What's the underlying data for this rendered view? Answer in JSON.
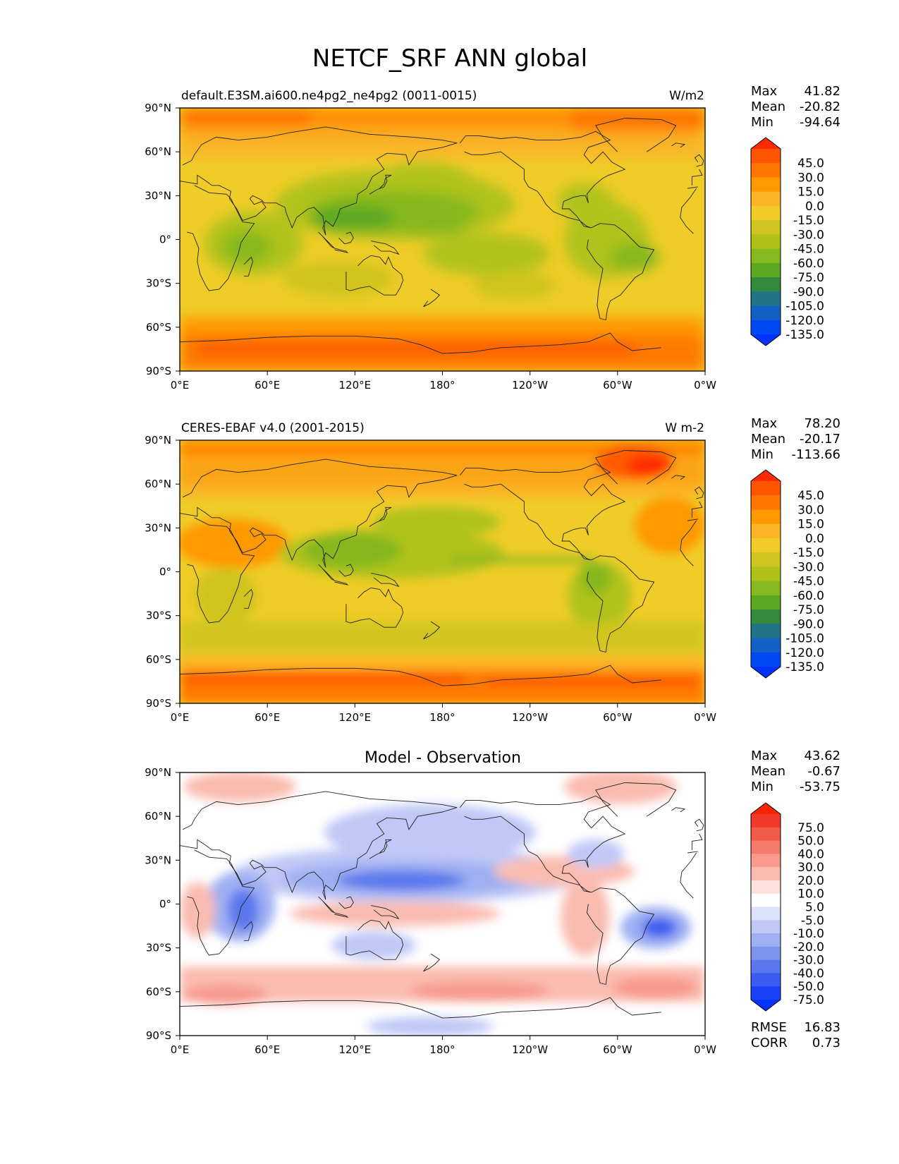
{
  "figure_title": "NETCF_SRF ANN global",
  "chart_data": [
    {
      "type": "heatmap",
      "name": "test",
      "title": "default.E3SM.ai600.ne4pg2_ne4pg2 (0011-0015)",
      "units": "W/m2",
      "stats": [
        {
          "label": "Max",
          "value": "41.82"
        },
        {
          "label": "Mean",
          "value": "-20.82"
        },
        {
          "label": "Min",
          "value": "-94.64"
        }
      ],
      "colorbar": {
        "labels": [
          "45.0",
          "30.0",
          "15.0",
          "0.0",
          "-15.0",
          "-30.0",
          "-45.0",
          "-60.0",
          "-75.0",
          "-90.0",
          "-105.0",
          "-120.0",
          "-135.0"
        ],
        "colors": [
          "#ff2a00",
          "#ff5500",
          "#ff7700",
          "#ff9900",
          "#fbb327",
          "#efcc27",
          "#cfc41f",
          "#b0c21a",
          "#86b81f",
          "#5aa820",
          "#338a3a",
          "#1f7488",
          "#1460c4",
          "#0049f2",
          "#0033ff"
        ]
      },
      "xlim": [
        0,
        360
      ],
      "ylim": [
        -90,
        90
      ],
      "xticks": [
        "0°E",
        "60°E",
        "120°E",
        "180°",
        "120°W",
        "60°W",
        "0°W"
      ],
      "yticks": [
        "90°N",
        "60°N",
        "30°N",
        "0°",
        "30°S",
        "60°S",
        "90°S"
      ]
    },
    {
      "type": "heatmap",
      "name": "reference",
      "title": "CERES-EBAF v4.0 (2001-2015)",
      "units": "W m-2",
      "stats": [
        {
          "label": "Max",
          "value": "78.20"
        },
        {
          "label": "Mean",
          "value": "-20.17"
        },
        {
          "label": "Min",
          "value": "-113.66"
        }
      ],
      "colorbar": {
        "labels": [
          "45.0",
          "30.0",
          "15.0",
          "0.0",
          "-15.0",
          "-30.0",
          "-45.0",
          "-60.0",
          "-75.0",
          "-90.0",
          "-105.0",
          "-120.0",
          "-135.0"
        ],
        "colors": [
          "#ff2a00",
          "#ff5500",
          "#ff7700",
          "#ff9900",
          "#fbb327",
          "#efcc27",
          "#cfc41f",
          "#b0c21a",
          "#86b81f",
          "#5aa820",
          "#338a3a",
          "#1f7488",
          "#1460c4",
          "#0049f2",
          "#0033ff"
        ]
      },
      "xlim": [
        0,
        360
      ],
      "ylim": [
        -90,
        90
      ],
      "xticks": [
        "0°E",
        "60°E",
        "120°E",
        "180°",
        "120°W",
        "60°W",
        "0°W"
      ],
      "yticks": [
        "90°N",
        "60°N",
        "30°N",
        "0°",
        "30°S",
        "60°S",
        "90°S"
      ]
    },
    {
      "type": "heatmap",
      "name": "difference",
      "title": "Model - Observation",
      "units": "",
      "stats": [
        {
          "label": "Max",
          "value": "43.62"
        },
        {
          "label": "Mean",
          "value": "-0.67"
        },
        {
          "label": "Min",
          "value": "-53.75"
        }
      ],
      "extra_stats": [
        {
          "label": "RMSE",
          "value": "16.83"
        },
        {
          "label": "CORR",
          "value": "0.73"
        }
      ],
      "colorbar": {
        "labels": [
          "75.0",
          "50.0",
          "40.0",
          "30.0",
          "20.0",
          "10.0",
          "5.0",
          "-5.0",
          "-10.0",
          "-20.0",
          "-30.0",
          "-40.0",
          "-50.0",
          "-75.0"
        ],
        "colors": [
          "#ff2200",
          "#f23a2a",
          "#f25a4a",
          "#f47a6a",
          "#f79a8c",
          "#fabcb0",
          "#fde0da",
          "#ffffff",
          "#dde2fb",
          "#bfc8f6",
          "#9faff2",
          "#7c93ee",
          "#5a78ec",
          "#3a5cf0",
          "#1a40f8",
          "#0033ff"
        ]
      },
      "xlim": [
        0,
        360
      ],
      "ylim": [
        -90,
        90
      ],
      "xticks": [
        "0°E",
        "60°E",
        "120°E",
        "180°",
        "120°W",
        "60°W",
        "0°W"
      ],
      "yticks": [
        "90°N",
        "60°N",
        "30°N",
        "0°",
        "30°S",
        "60°S",
        "90°S"
      ]
    }
  ]
}
